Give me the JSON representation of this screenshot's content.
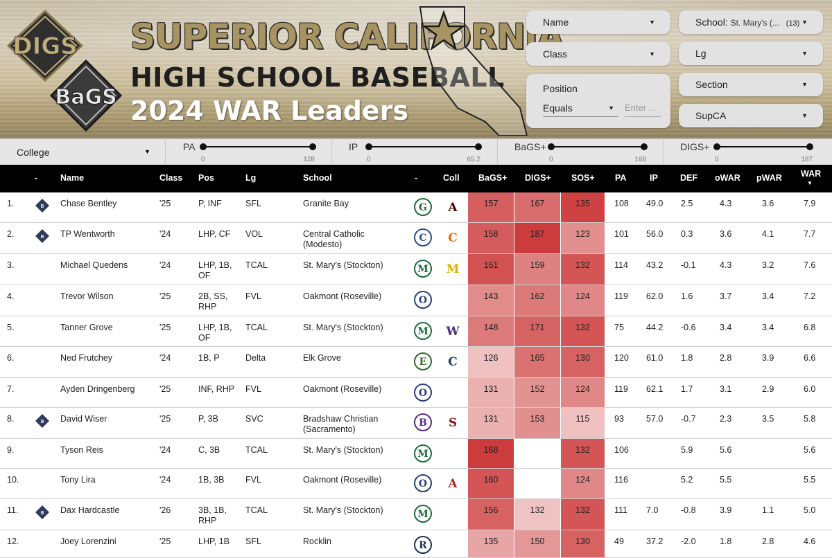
{
  "header": {
    "logo_top": "DIGS",
    "logo_bottom": "BaGS",
    "title_line1": "SUPERIOR CALIFORNIA",
    "title_line2": "HIGH SCHOOL BASEBALL",
    "title_line3": "2024 WAR Leaders"
  },
  "filters": {
    "name": {
      "label": "Name"
    },
    "class": {
      "label": "Class"
    },
    "position": {
      "label": "Position",
      "operator": "Equals",
      "placeholder": "Enter ..."
    },
    "school": {
      "label": "School:",
      "value": "St. Mary's (...",
      "count": "(13)"
    },
    "lg": {
      "label": "Lg"
    },
    "section": {
      "label": "Section"
    },
    "supca": {
      "label": "SupCA"
    },
    "college": {
      "label": "College"
    }
  },
  "sliders": [
    {
      "name": "PA",
      "min": "0",
      "max": "128"
    },
    {
      "name": "IP",
      "min": "0",
      "max": "65.2"
    },
    {
      "name": "BaGS+",
      "min": "0",
      "max": "168"
    },
    {
      "name": "DIGS+",
      "min": "0",
      "max": "187"
    }
  ],
  "table": {
    "headers": {
      "dash1": "-",
      "name": "Name",
      "class": "Class",
      "pos": "Pos",
      "lg": "Lg",
      "school": "School",
      "dash2": "-",
      "coll": "Coll",
      "bags": "BaGS+",
      "digs": "DIGS+",
      "sos": "SOS+",
      "pa": "PA",
      "ip": "IP",
      "def": "DEF",
      "owar": "oWAR",
      "pwar": "pWAR",
      "war": "WAR",
      "war_sort": "▼"
    },
    "rows": [
      {
        "rank": "1.",
        "name": "Chase Bentley",
        "class": "'25",
        "pos": [
          "P, INF"
        ],
        "lg": "SFL",
        "school": [
          "Granite Bay"
        ],
        "bags": "157",
        "digs": "167",
        "sos": "135",
        "pa": "108",
        "ip": "49.0",
        "def": "2.5",
        "owar": "4.3",
        "pwar": "3.6",
        "war": "7.9"
      },
      {
        "rank": "2.",
        "name": "TP Wentworth",
        "class": "'24",
        "pos": [
          "LHP, CF"
        ],
        "lg": "VOL",
        "school": [
          "Central Catholic",
          "(Modesto)"
        ],
        "bags": "158",
        "digs": "187",
        "sos": "123",
        "pa": "101",
        "ip": "56.0",
        "def": "0.3",
        "owar": "3.6",
        "pwar": "4.1",
        "war": "7.7"
      },
      {
        "rank": "3.",
        "name": "Michael Quedens",
        "class": "'24",
        "pos": [
          "LHP, 1B,",
          "OF"
        ],
        "lg": "TCAL",
        "school": [
          "St. Mary's (Stockton)"
        ],
        "bags": "161",
        "digs": "159",
        "sos": "132",
        "pa": "114",
        "ip": "43.2",
        "def": "-0.1",
        "owar": "4.3",
        "pwar": "3.2",
        "war": "7.6"
      },
      {
        "rank": "4.",
        "name": "Trevor Wilson",
        "class": "'25",
        "pos": [
          "2B, SS,",
          "RHP"
        ],
        "lg": "FVL",
        "school": [
          "Oakmont (Roseville)"
        ],
        "bags": "143",
        "digs": "162",
        "sos": "124",
        "pa": "119",
        "ip": "62.0",
        "def": "1.6",
        "owar": "3.7",
        "pwar": "3.4",
        "war": "7.2"
      },
      {
        "rank": "5.",
        "name": "Tanner Grove",
        "class": "'25",
        "pos": [
          "LHP, 1B,",
          "OF"
        ],
        "lg": "TCAL",
        "school": [
          "St. Mary's (Stockton)"
        ],
        "bags": "148",
        "digs": "171",
        "sos": "132",
        "pa": "75",
        "ip": "44.2",
        "def": "-0.6",
        "owar": "3.4",
        "pwar": "3.4",
        "war": "6.8"
      },
      {
        "rank": "6.",
        "name": "Ned Frutchey",
        "class": "'24",
        "pos": [
          "1B, P"
        ],
        "lg": "Delta",
        "school": [
          "Elk Grove"
        ],
        "bags": "126",
        "digs": "165",
        "sos": "130",
        "pa": "120",
        "ip": "61.0",
        "def": "1.8",
        "owar": "2.8",
        "pwar": "3.9",
        "war": "6.6"
      },
      {
        "rank": "7.",
        "name": "Ayden Dringenberg",
        "class": "'25",
        "pos": [
          "INF, RHP"
        ],
        "lg": "FVL",
        "school": [
          "Oakmont (Roseville)"
        ],
        "bags": "131",
        "digs": "152",
        "sos": "124",
        "pa": "119",
        "ip": "62.1",
        "def": "1.7",
        "owar": "3.1",
        "pwar": "2.9",
        "war": "6.0"
      },
      {
        "rank": "8.",
        "name": "David Wiser",
        "class": "'25",
        "pos": [
          "P, 3B"
        ],
        "lg": "SVC",
        "school": [
          "Bradshaw Christian",
          "(Sacramento)"
        ],
        "bags": "131",
        "digs": "153",
        "sos": "115",
        "pa": "93",
        "ip": "57.0",
        "def": "-0.7",
        "owar": "2.3",
        "pwar": "3.5",
        "war": "5.8"
      },
      {
        "rank": "9.",
        "name": "Tyson Reis",
        "class": "'24",
        "pos": [
          "C, 3B"
        ],
        "lg": "TCAL",
        "school": [
          "St. Mary's (Stockton)"
        ],
        "bags": "168",
        "digs": "",
        "sos": "132",
        "pa": "106",
        "ip": "",
        "def": "5.9",
        "owar": "5.6",
        "pwar": "",
        "war": "5.6"
      },
      {
        "rank": "10.",
        "name": "Tony Lira",
        "class": "'24",
        "pos": [
          "1B, 3B"
        ],
        "lg": "FVL",
        "school": [
          "Oakmont (Roseville)"
        ],
        "bags": "160",
        "digs": "",
        "sos": "124",
        "pa": "116",
        "ip": "",
        "def": "5.2",
        "owar": "5.5",
        "pwar": "",
        "war": "5.5"
      },
      {
        "rank": "11.",
        "name": "Dax Hardcastle",
        "class": "'26",
        "pos": [
          "3B, 1B,",
          "RHP"
        ],
        "lg": "TCAL",
        "school": [
          "St. Mary's (Stockton)"
        ],
        "bags": "156",
        "digs": "132",
        "sos": "132",
        "pa": "111",
        "ip": "7.0",
        "def": "-0.8",
        "owar": "3.9",
        "pwar": "1.1",
        "war": "5.0"
      },
      {
        "rank": "12.",
        "name": "Joey Lorenzini",
        "class": "'25",
        "pos": [
          "LHP, 1B"
        ],
        "lg": "SFL",
        "school": [
          "Rocklin"
        ],
        "bags": "135",
        "digs": "150",
        "sos": "130",
        "pa": "49",
        "ip": "37.2",
        "def": "-2.0",
        "owar": "1.8",
        "pwar": "2.8",
        "war": "4.6"
      }
    ]
  },
  "icons": {
    "bags_badge_rows": [
      1,
      2,
      8,
      11
    ],
    "school_logos": [
      "granite-bay-logo",
      "central-catholic-logo",
      "st-marys-logo",
      "oakmont-logo",
      "st-marys-logo",
      "elk-grove-logo",
      "oakmont-logo",
      "bradshaw-christian-logo",
      "st-marys-logo",
      "oakmont-logo",
      "st-marys-logo",
      "rocklin-logo"
    ],
    "college_logos": [
      "texas-am-logo",
      "clemson-logo",
      "michigan-logo",
      "",
      "washington-logo",
      "uc-davis-logo",
      "",
      "stanford-logo",
      "",
      "arizona-logo",
      "",
      ""
    ]
  },
  "colors": {
    "header_bg": "#000000",
    "heat_dark": "#cc3c3c",
    "heat_light": "#f4d4d4",
    "title_gold": "#a89463"
  }
}
